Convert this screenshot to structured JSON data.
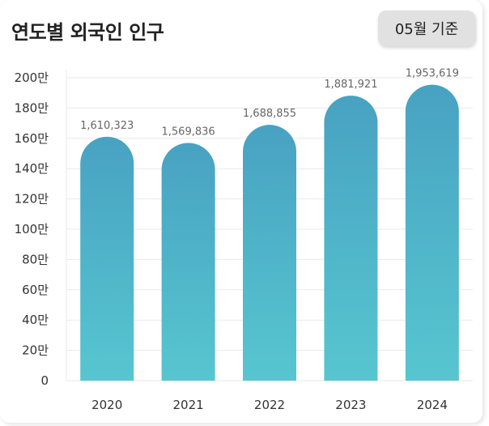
{
  "title": "연도별 외국인 인구",
  "badge": "05월 기준",
  "colors": {
    "bar_top": "#48a2c2",
    "bar_bottom": "#57c6d0",
    "grid": "#e9e9e9"
  },
  "chart_data": {
    "type": "bar",
    "categories": [
      "2020",
      "2021",
      "2022",
      "2023",
      "2024"
    ],
    "values": [
      1610323,
      1569836,
      1688855,
      1881921,
      1953619
    ],
    "data_labels": [
      "1,610,323",
      "1,569,836",
      "1,688,855",
      "1,881,921",
      "1,953,619"
    ],
    "ylim": [
      0,
      2000000
    ],
    "yticks": [
      0,
      200000,
      400000,
      600000,
      800000,
      1000000,
      1200000,
      1400000,
      1600000,
      1800000,
      2000000
    ],
    "ytick_labels": [
      "0",
      "20만",
      "40만",
      "60만",
      "80만",
      "100만",
      "120만",
      "140만",
      "160만",
      "180만",
      "200만"
    ],
    "grid": true
  }
}
